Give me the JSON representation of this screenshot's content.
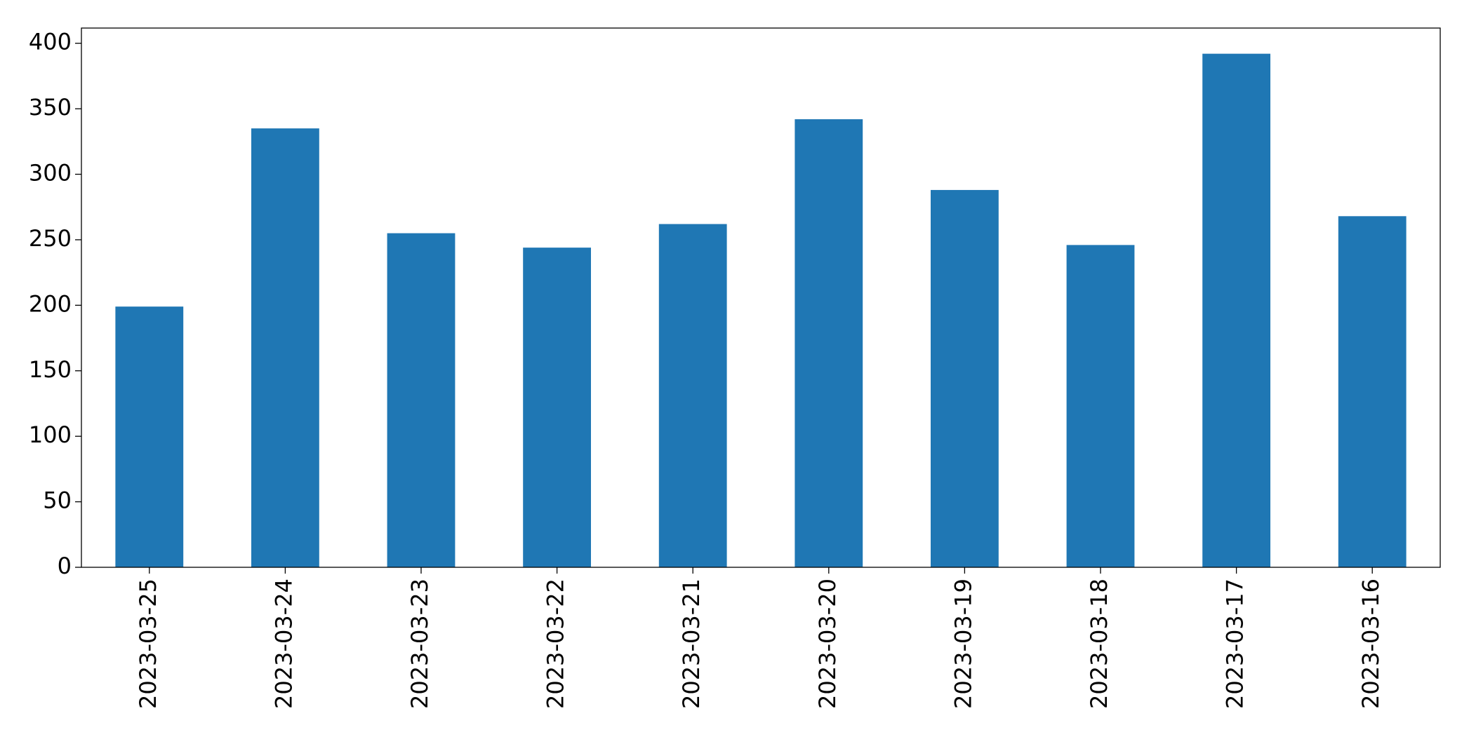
{
  "chart_data": {
    "type": "bar",
    "categories": [
      "2023-03-25",
      "2023-03-24",
      "2023-03-23",
      "2023-03-22",
      "2023-03-21",
      "2023-03-20",
      "2023-03-19",
      "2023-03-18",
      "2023-03-17",
      "2023-03-16"
    ],
    "values": [
      199,
      335,
      255,
      244,
      262,
      342,
      288,
      246,
      392,
      268
    ],
    "color": "#1f77b4",
    "ylim": [
      0,
      411.6
    ],
    "yticks": [
      0,
      50,
      100,
      150,
      200,
      250,
      300,
      350,
      400
    ],
    "grid": false
  }
}
